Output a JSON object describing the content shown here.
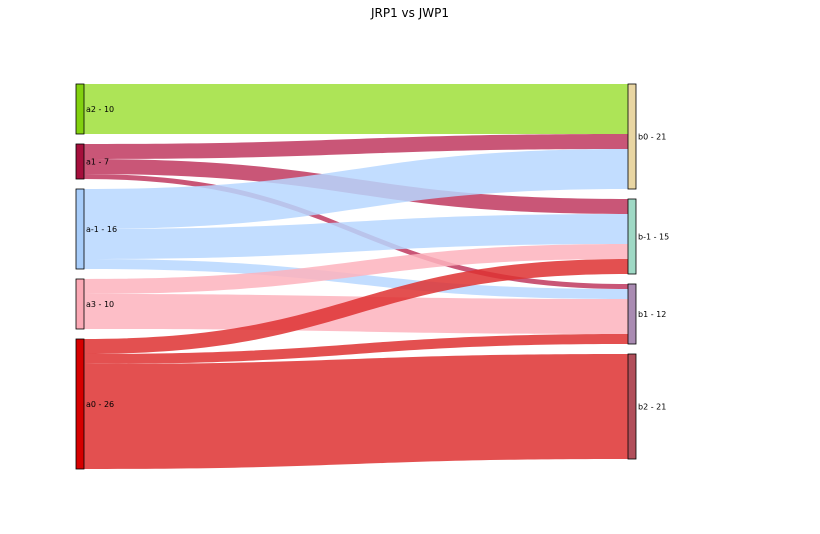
{
  "chart_data": {
    "type": "sankey",
    "title": "JRP1 vs JWP1",
    "left_nodes": [
      {
        "id": "a2",
        "label": "a2 - 10",
        "value": 10,
        "color": "#82d10f"
      },
      {
        "id": "a1",
        "label": "a1 - 7",
        "value": 7,
        "color": "#a50f3c"
      },
      {
        "id": "a-1",
        "label": "a-1 - 16",
        "value": 16,
        "color": "#a8cdfa"
      },
      {
        "id": "a3",
        "label": "a3 - 10",
        "value": 10,
        "color": "#fba9b5"
      },
      {
        "id": "a0",
        "label": "a0 - 26",
        "value": 26,
        "color": "#d60000"
      }
    ],
    "right_nodes": [
      {
        "id": "b0",
        "label": "b0 - 21",
        "value": 21,
        "color": "#e9d6a3"
      },
      {
        "id": "b-1",
        "label": "b-1 - 15",
        "value": 15,
        "color": "#9fd9c5"
      },
      {
        "id": "b1",
        "label": "b1 - 12",
        "value": 12,
        "color": "#a98bb2"
      },
      {
        "id": "b2",
        "label": "b2 - 21",
        "value": 21,
        "color": "#b14f5b"
      }
    ],
    "links": [
      {
        "source": "a2",
        "target": "b0",
        "value": 10,
        "color": "#9fdf3a"
      },
      {
        "source": "a1",
        "target": "b0",
        "value": 3,
        "color": "#c0385f"
      },
      {
        "source": "a1",
        "target": "b-1",
        "value": 3,
        "color": "#c0385f"
      },
      {
        "source": "a1",
        "target": "b1",
        "value": 1,
        "color": "#c0385f"
      },
      {
        "source": "a-1",
        "target": "b0",
        "value": 8,
        "color": "#b7d7ff"
      },
      {
        "source": "a-1",
        "target": "b-1",
        "value": 6,
        "color": "#b7d7ff"
      },
      {
        "source": "a-1",
        "target": "b1",
        "value": 2,
        "color": "#b7d7ff"
      },
      {
        "source": "a3",
        "target": "b-1",
        "value": 3,
        "color": "#fdb3bd"
      },
      {
        "source": "a3",
        "target": "b1",
        "value": 7,
        "color": "#fdb3bd"
      },
      {
        "source": "a0",
        "target": "b-1",
        "value": 3,
        "color": "#de3131"
      },
      {
        "source": "a0",
        "target": "b1",
        "value": 2,
        "color": "#de3131"
      },
      {
        "source": "a0",
        "target": "b2",
        "value": 21,
        "color": "#de3131"
      }
    ]
  }
}
